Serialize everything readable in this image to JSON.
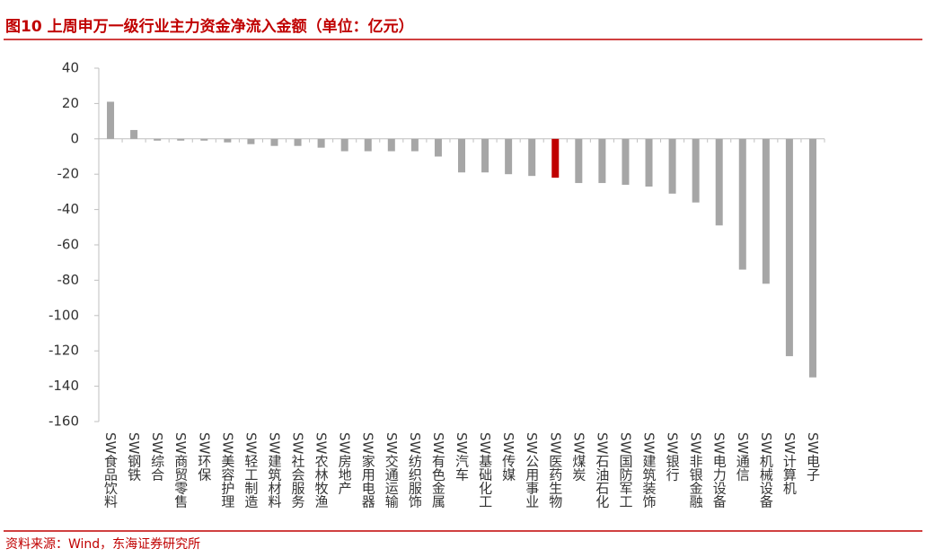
{
  "chart_data": {
    "type": "bar",
    "title": "图10  上周申万一级行业主力资金净流入金额（单位：亿元）",
    "source": "资料来源：Wind，东海证券研究所",
    "categories": [
      "SW食品饮料",
      "SW钢铁",
      "SW综合",
      "SW商贸零售",
      "SW环保",
      "SW美容护理",
      "SW轻工制造",
      "SW建筑材料",
      "SW社会服务",
      "SW农林牧渔",
      "SW房地产",
      "SW家用电器",
      "SW交通运输",
      "SW纺织服饰",
      "SW有色金属",
      "SW汽车",
      "SW基础化工",
      "SW传媒",
      "SW公用事业",
      "SW医药生物",
      "SW煤炭",
      "SW石油石化",
      "SW国防军工",
      "SW建筑装饰",
      "SW银行",
      "SW非银金融",
      "SW电力设备",
      "SW通信",
      "SW机械设备",
      "SW计算机",
      "SW电子"
    ],
    "values": [
      21,
      5,
      -1,
      -1,
      -1,
      -2,
      -3,
      -4,
      -4,
      -5,
      -7,
      -7,
      -7,
      -7,
      -10,
      -19,
      -19,
      -20,
      -21,
      -22,
      -25,
      -25,
      -26,
      -27,
      -31,
      -36,
      -49,
      -74,
      -82,
      -123,
      -135
    ],
    "colors": [
      "#a6a6a6",
      "#a6a6a6",
      "#a6a6a6",
      "#a6a6a6",
      "#a6a6a6",
      "#a6a6a6",
      "#a6a6a6",
      "#a6a6a6",
      "#a6a6a6",
      "#a6a6a6",
      "#a6a6a6",
      "#a6a6a6",
      "#a6a6a6",
      "#a6a6a6",
      "#a6a6a6",
      "#a6a6a6",
      "#a6a6a6",
      "#a6a6a6",
      "#a6a6a6",
      "#c00000",
      "#a6a6a6",
      "#a6a6a6",
      "#a6a6a6",
      "#a6a6a6",
      "#a6a6a6",
      "#a6a6a6",
      "#a6a6a6",
      "#a6a6a6",
      "#a6a6a6",
      "#a6a6a6",
      "#a6a6a6"
    ],
    "ylim": [
      -160,
      40
    ],
    "yticks": [
      -160,
      -140,
      -120,
      -100,
      -80,
      -60,
      -40,
      -20,
      0,
      20,
      40
    ],
    "grid": false
  }
}
